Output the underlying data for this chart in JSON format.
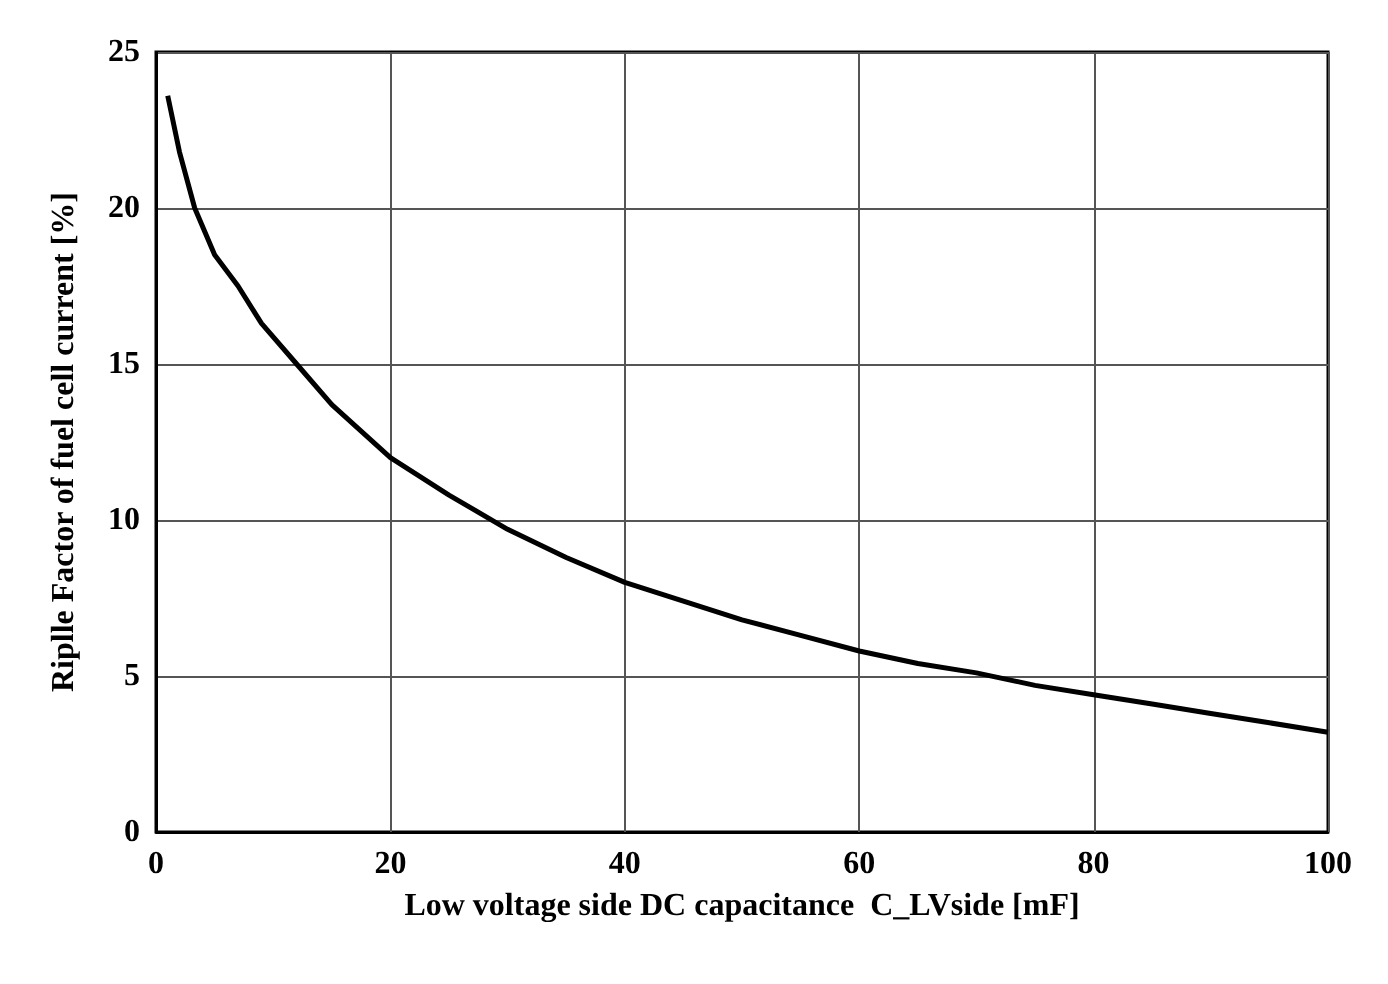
{
  "chart_data": {
    "type": "line",
    "xlabel": "Low voltage side DC capacitance  C_LVside [mF]",
    "ylabel": "Riplle Factor of fuel cell current [%]",
    "x": [
      1,
      2,
      3.3,
      5,
      7,
      9,
      12,
      15,
      20,
      25,
      30,
      35,
      40,
      45,
      50,
      55,
      60,
      65,
      70,
      75,
      80,
      85,
      90,
      95,
      100
    ],
    "series": [
      {
        "color": "#000000",
        "values": [
          23.6,
          21.8,
          20.0,
          18.5,
          17.5,
          16.3,
          15.0,
          13.7,
          12.0,
          10.8,
          9.7,
          8.8,
          8.0,
          7.4,
          6.8,
          6.3,
          5.8,
          5.4,
          5.1,
          4.7,
          4.4,
          4.1,
          3.8,
          3.5,
          3.2
        ]
      }
    ],
    "xlim": [
      0,
      100
    ],
    "xticks": [
      0,
      20,
      40,
      60,
      80,
      100
    ],
    "ylim": [
      0,
      25
    ],
    "yticks": [
      0,
      5,
      10,
      15,
      20,
      25
    ],
    "grid": true,
    "marker": "none",
    "line_style": "solid"
  }
}
